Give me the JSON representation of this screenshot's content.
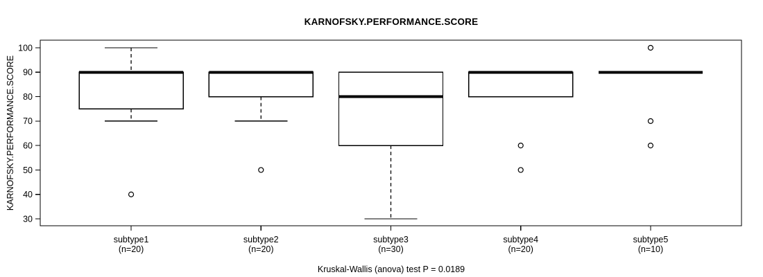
{
  "figure": {
    "background": "#ffffff",
    "foreground": "#000000"
  },
  "chart_data": {
    "type": "boxplot",
    "title": "KARNOFSKY.PERFORMANCE.SCORE",
    "ylabel": "KARNOFSKY.PERFORMANCE.SCORE",
    "xlabel": "",
    "annotation": "Kruskal-Wallis (anova) test P = 0.0189",
    "ylim": [
      30,
      100
    ],
    "yticks": [
      100,
      90,
      80,
      70,
      60,
      50,
      40,
      30
    ],
    "grid": false,
    "legend": "none",
    "categories": [
      "subtype1",
      "subtype2",
      "subtype3",
      "subtype4",
      "subtype5"
    ],
    "series": [
      {
        "name": "subtype1",
        "n": 20,
        "n_label": "(n=20)",
        "whisker_low": 70,
        "q1": 75,
        "median": 90,
        "q3": 90,
        "whisker_high": 100,
        "outliers": [
          40
        ]
      },
      {
        "name": "subtype2",
        "n": 20,
        "n_label": "(n=20)",
        "whisker_low": 70,
        "q1": 80,
        "median": 90,
        "q3": 90,
        "whisker_high": 90,
        "outliers": [
          50
        ]
      },
      {
        "name": "subtype3",
        "n": 30,
        "n_label": "(n=30)",
        "whisker_low": 30,
        "q1": 60,
        "median": 80,
        "q3": 90,
        "whisker_high": 90,
        "outliers": []
      },
      {
        "name": "subtype4",
        "n": 20,
        "n_label": "(n=20)",
        "whisker_low": 80,
        "q1": 80,
        "median": 90,
        "q3": 90,
        "whisker_high": 90,
        "outliers": [
          60,
          50
        ]
      },
      {
        "name": "subtype5",
        "n": 10,
        "n_label": "(n=10)",
        "whisker_low": 90,
        "q1": 90,
        "median": 90,
        "q3": 90,
        "whisker_high": 90,
        "outliers": [
          100,
          70,
          60
        ]
      }
    ]
  }
}
